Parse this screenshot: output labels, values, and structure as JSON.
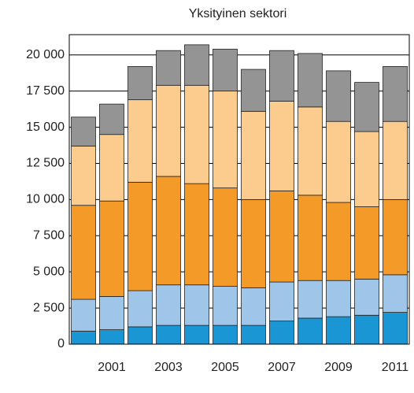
{
  "chart_data": {
    "type": "stacked_bar",
    "title": "Yksityinen sektori",
    "categories": [
      null,
      "2001",
      null,
      "2003",
      null,
      "2005",
      null,
      "2007",
      null,
      "2009",
      null,
      "2011"
    ],
    "series": [
      {
        "color": "#1a96d4",
        "values": [
          900,
          1000,
          1200,
          1300,
          1300,
          1300,
          1300,
          1600,
          1800,
          1900,
          2000,
          2200
        ]
      },
      {
        "color": "#9fc5e8",
        "values": [
          2200,
          2300,
          2500,
          2800,
          2800,
          2700,
          2600,
          2700,
          2600,
          2500,
          2500,
          2600
        ]
      },
      {
        "color": "#f39a28",
        "values": [
          6500,
          6600,
          7500,
          7500,
          7000,
          6800,
          6100,
          6300,
          5900,
          5400,
          5000,
          5200
        ]
      },
      {
        "color": "#fccc8e",
        "values": [
          4100,
          4600,
          5700,
          6300,
          6800,
          6700,
          6100,
          6200,
          6100,
          5600,
          5200,
          5400
        ]
      },
      {
        "color": "#949494",
        "values": [
          2000,
          2100,
          2300,
          2400,
          2800,
          2900,
          2900,
          3500,
          3700,
          3500,
          3400,
          3800
        ]
      }
    ],
    "ylim": [
      0,
      21400
    ],
    "yticks": [
      0,
      {
        "value": 2500,
        "label": "2 500"
      },
      {
        "value": 5000,
        "label": "5 000"
      },
      {
        "value": 7500,
        "label": "7 500"
      },
      {
        "value": 10000,
        "label": "10 000"
      },
      {
        "value": 12500,
        "label": "12 500"
      },
      {
        "value": 15000,
        "label": "15 000"
      },
      {
        "value": 17500,
        "label": "17 500"
      },
      {
        "value": 20000,
        "label": "20 000"
      }
    ],
    "grid": true
  }
}
